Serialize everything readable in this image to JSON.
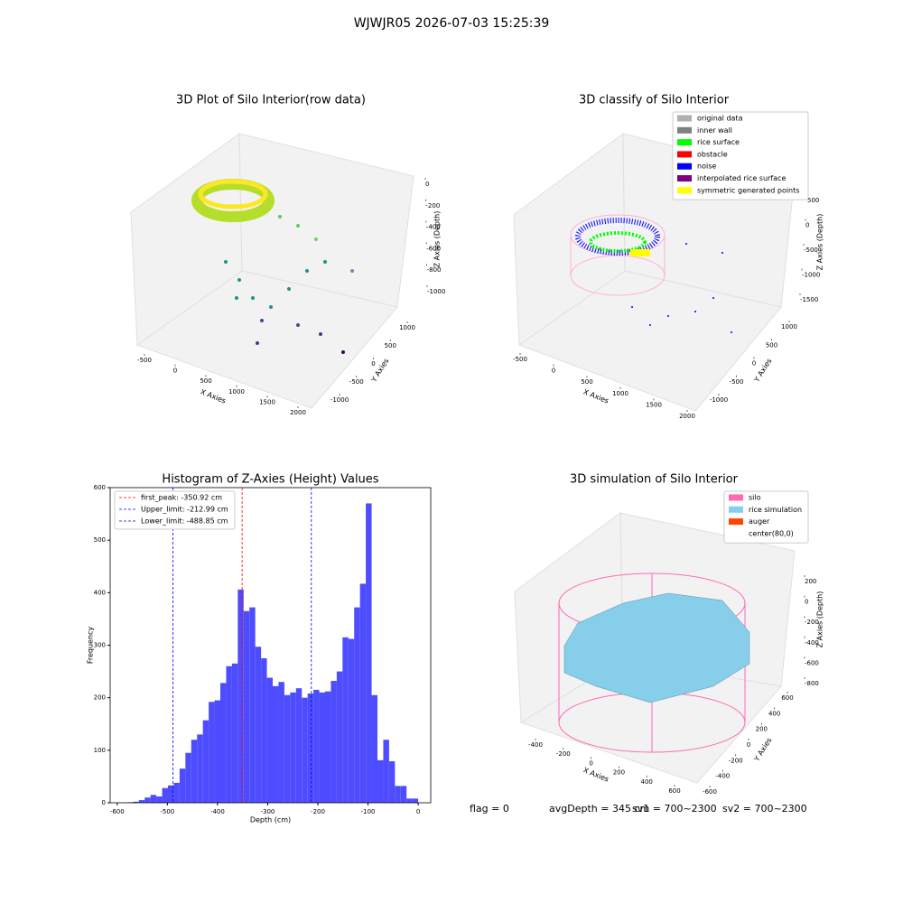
{
  "title": "WJWJR05 2026-07-03 15:25:39",
  "footer": [
    "flag = 0",
    "avgDepth = 345 cm",
    "sv1 = 700~2300",
    "sv2 = 700~2300"
  ],
  "chart_data": [
    {
      "type": "scatter3d",
      "title": "3D Plot of Silo Interior(row data)",
      "xlabel": "X Axies",
      "ylabel": "Y Axies",
      "zlabel": "Z Axies (Depth)",
      "xticks": [
        -500,
        0,
        500,
        1000,
        1500,
        2000
      ],
      "yticks": [
        -1000,
        -500,
        0,
        500,
        1000
      ],
      "zticks": [
        -1000,
        -800,
        -600,
        -400,
        -200,
        0
      ]
    },
    {
      "type": "scatter3d",
      "title": "3D classify of Silo Interior",
      "xlabel": "X Axies",
      "ylabel": "Y Axies",
      "zlabel": "Z Axies (Depth)",
      "xticks": [
        -500,
        0,
        500,
        1000,
        1500,
        2000
      ],
      "yticks": [
        -1000,
        -500,
        0,
        500,
        1000
      ],
      "zticks": [
        -1500,
        -1000,
        -500,
        0,
        500
      ],
      "legend": [
        {
          "name": "original data",
          "color": "#b0b0b0"
        },
        {
          "name": "inner wall",
          "color": "#808080"
        },
        {
          "name": "rice surface",
          "color": "#00ff00"
        },
        {
          "name": "obstacle",
          "color": "#ff0000"
        },
        {
          "name": "noise",
          "color": "#0000ff"
        },
        {
          "name": "interpolated rice surface",
          "color": "#800080"
        },
        {
          "name": "symmetric generated points",
          "color": "#ffff00"
        }
      ]
    },
    {
      "type": "histogram",
      "title": "Histogram of Z-Axies (Height) Values",
      "xlabel": "Depth (cm)",
      "ylabel": "Frequency",
      "color": "#4d4dff",
      "bins": [
        -580,
        -568.4,
        -556.8,
        -545.2,
        -533.6,
        -522,
        -510.4,
        -498.8,
        -487.2,
        -475.6,
        -464,
        -452.4,
        -440.8,
        -429.2,
        -417.6,
        -406,
        -394.4,
        -382.8,
        -371.2,
        -359.6,
        -348,
        -336.4,
        -324.8,
        -313.2,
        -301.6,
        -290,
        -278.4,
        -266.8,
        -255.2,
        -243.6,
        -232,
        -220.4,
        -208.8,
        -197.2,
        -185.6,
        -174,
        -162.4,
        -150.8,
        -139.2,
        -127.6,
        -116,
        -104.4,
        -92.8,
        -81.2,
        -69.6,
        -58,
        -46.4,
        -34.8,
        -23.2,
        -11.6,
        0
      ],
      "values": [
        1,
        2,
        5,
        10,
        15,
        12,
        28,
        33,
        38,
        65,
        95,
        120,
        130,
        157,
        192,
        195,
        228,
        260,
        265,
        406,
        365,
        372,
        297,
        275,
        238,
        222,
        230,
        205,
        210,
        218,
        200,
        208,
        215,
        210,
        212,
        232,
        250,
        315,
        312,
        372,
        417,
        570,
        205,
        81,
        120,
        79,
        32,
        32,
        8,
        8
      ],
      "xlim": [
        -614,
        25
      ],
      "ylim": [
        0,
        600
      ],
      "xticks": [
        -600,
        -500,
        -400,
        -300,
        -200,
        -100,
        0
      ],
      "yticks": [
        0,
        100,
        200,
        300,
        400,
        500,
        600
      ],
      "vlines": [
        {
          "label": "first_peak: -350.92 cm",
          "value": -350.92,
          "color": "#ff0000"
        },
        {
          "label": "Upper_limit: -212.99 cm",
          "value": -212.99,
          "color": "#0000ff"
        },
        {
          "label": "Lower_limit: -488.85 cm",
          "value": -488.85,
          "color": "#0000ff"
        }
      ]
    },
    {
      "type": "surface3d",
      "title": "3D simulation of Silo Interior",
      "xlabel": "X Axies",
      "ylabel": "Y Axies",
      "zlabel": "Z Axies (Depth)",
      "xticks": [
        -400,
        -200,
        0,
        200,
        400,
        600
      ],
      "yticks": [
        -600,
        -400,
        -200,
        0,
        200,
        400,
        600
      ],
      "zticks": [
        -800,
        -600,
        -400,
        -200,
        0,
        200
      ],
      "legend": [
        {
          "name": "silo",
          "color": "#ff69b4"
        },
        {
          "name": "rice simulation",
          "color": "#87ceeb"
        },
        {
          "name": "auger",
          "color": "#ff4500"
        },
        {
          "name": "center(80,0)",
          "color": null
        }
      ]
    }
  ]
}
